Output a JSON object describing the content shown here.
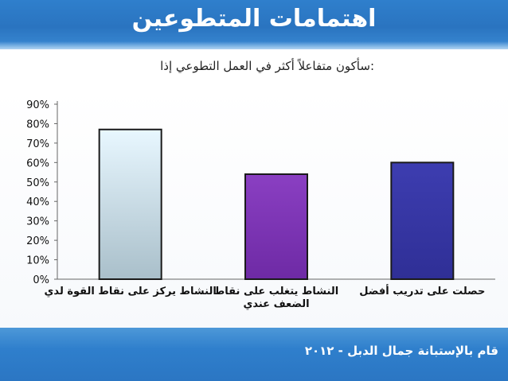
{
  "slide": {
    "title": "اهتمامات المتطوعين",
    "subtitle": ":سأكون متفاعلاً أكثر في العمل التطوعي إذا",
    "footer": "قام بالإستبانة جمال الدبل - ٢٠١٢"
  },
  "chart_data": {
    "type": "bar",
    "title": "",
    "xlabel": "",
    "ylabel": "",
    "ylim": [
      0,
      90
    ],
    "yticks": [
      "0%",
      "10%",
      "20%",
      "30%",
      "40%",
      "50%",
      "60%",
      "70%",
      "80%",
      "90%"
    ],
    "grid": false,
    "legend": "none",
    "categories": [
      [
        "النشاط يركز على نقاط القوة لدي"
      ],
      [
        "النشاط يتغلب على نقاط",
        "الضعف عندي"
      ],
      [
        "حصلت على تدريب أفضل"
      ]
    ],
    "values": [
      77,
      54,
      60
    ],
    "colors": [
      "#d8ecf6",
      "#7f35b6",
      "#3737a4"
    ]
  }
}
